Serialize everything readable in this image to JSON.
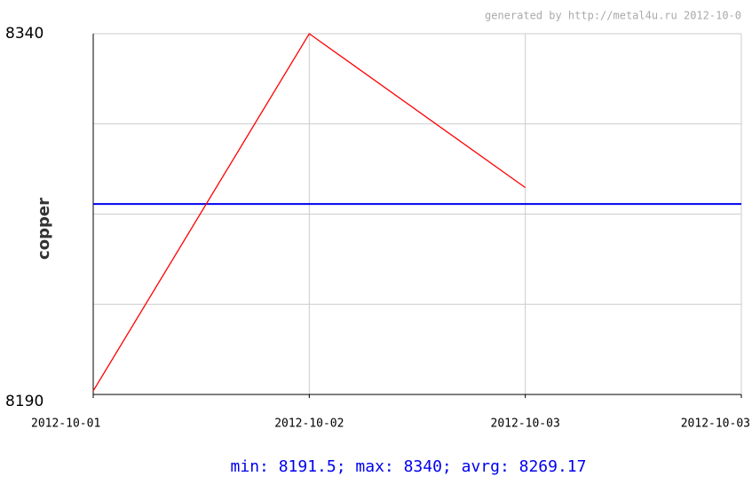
{
  "chart_data": {
    "type": "line",
    "credit": "generated by http://metal4u.ru 2012-10-0",
    "ylabel": "copper",
    "footer": "min: 8191.5; max: 8340; avrg: 8269.17",
    "categories": [
      "2012-10-01",
      "2012-10-02",
      "2012-10-03",
      "2012-10-03"
    ],
    "series": [
      {
        "name": "copper",
        "color": "#ff0000",
        "values": [
          8191.5,
          8340,
          8276,
          null
        ]
      }
    ],
    "average": 8269.17,
    "average_color": "#0000ee",
    "ylim": [
      8190,
      8340
    ],
    "yticks": [
      8190,
      8340
    ],
    "minor_yticks": [
      8227.5,
      8265,
      8302.5
    ],
    "grid": true
  }
}
